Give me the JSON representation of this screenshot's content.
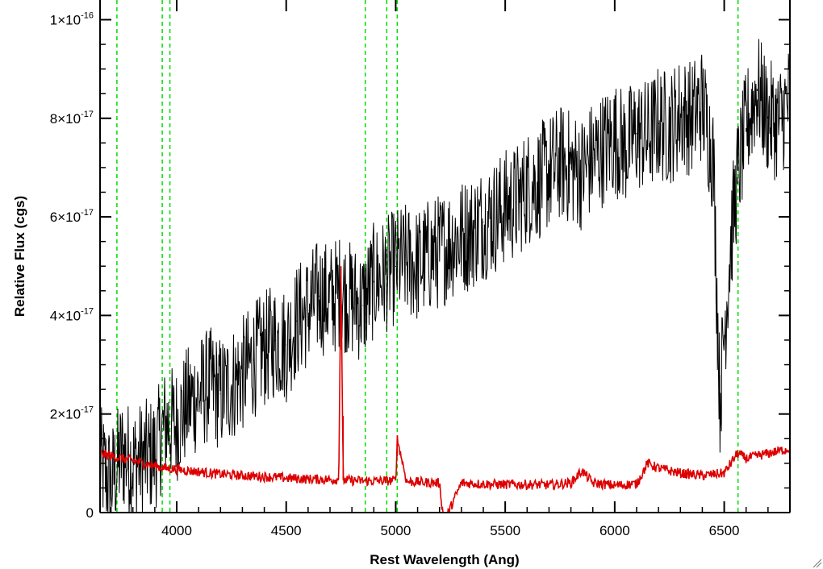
{
  "chart_data": {
    "type": "line",
    "title": "",
    "xlabel": "Rest Wavelength (Ang)",
    "ylabel": "Relative Flux (cgs)",
    "xlim": [
      3650,
      6800
    ],
    "ylim": [
      0,
      1.04e-16
    ],
    "x_ticks": [
      4000,
      4500,
      5000,
      5500,
      6000,
      6500
    ],
    "x_tick_labels": [
      "4000",
      "4500",
      "5000",
      "5500",
      "6000",
      "6500"
    ],
    "y_ticks": [
      {
        "value": 0,
        "mantissa": "0",
        "exponent": ""
      },
      {
        "value": 2e-17,
        "mantissa": "2×10",
        "exponent": "-17"
      },
      {
        "value": 4e-17,
        "mantissa": "4×10",
        "exponent": "-17"
      },
      {
        "value": 6e-17,
        "mantissa": "6×10",
        "exponent": "-17"
      },
      {
        "value": 8e-17,
        "mantissa": "8×10",
        "exponent": "-17"
      },
      {
        "value": 1e-16,
        "mantissa": "1×10",
        "exponent": "-16"
      }
    ],
    "grid": false,
    "reference_lines": {
      "color": "#00dd00",
      "style": "dashed",
      "x": [
        3727,
        3934,
        3969,
        4861,
        4959,
        5007,
        6563
      ]
    },
    "series": [
      {
        "color": "#000000",
        "x": [
          3650,
          3700,
          3750,
          3800,
          3850,
          3900,
          3950,
          4000,
          4050,
          4100,
          4150,
          4200,
          4250,
          4300,
          4350,
          4400,
          4450,
          4500,
          4550,
          4600,
          4650,
          4700,
          4750,
          4800,
          4850,
          4900,
          4950,
          5000,
          5050,
          5100,
          5150,
          5200,
          5250,
          5300,
          5350,
          5400,
          5450,
          5500,
          5550,
          5600,
          5650,
          5700,
          5750,
          5800,
          5850,
          5900,
          5950,
          6000,
          6050,
          6100,
          6150,
          6200,
          6250,
          6300,
          6350,
          6400,
          6450,
          6480,
          6500,
          6530,
          6560,
          6600,
          6650,
          6700,
          6750,
          6800
        ],
        "values": [
          1e-17,
          6e-18,
          1.2e-17,
          1e-17,
          1.1e-17,
          1.2e-17,
          1.8e-17,
          1.8e-17,
          2.2e-17,
          2.4e-17,
          2.6e-17,
          2.4e-17,
          2.6e-17,
          2.8e-17,
          3.1e-17,
          3.3e-17,
          3.5e-17,
          3.4e-17,
          3.9e-17,
          4.1e-17,
          4.4e-17,
          4.3e-17,
          4.5e-17,
          4.3e-17,
          4.2e-17,
          4.7e-17,
          4.8e-17,
          5e-17,
          5.1e-17,
          5e-17,
          5.2e-17,
          5.3e-17,
          5.5e-17,
          5.6e-17,
          5.7e-17,
          5.9e-17,
          6e-17,
          6.2e-17,
          6.3e-17,
          6.6e-17,
          6.7e-17,
          6.9e-17,
          7.1e-17,
          7e-17,
          6.9e-17,
          7.2e-17,
          7.4e-17,
          7.6e-17,
          7.4e-17,
          7.7e-17,
          7.6e-17,
          7.9e-17,
          7.8e-17,
          8.1e-17,
          8e-17,
          8.3e-17,
          7.2e-17,
          2.3e-17,
          3.6e-17,
          5.5e-17,
          6.8e-17,
          7.8e-17,
          8.6e-17,
          8e-17,
          7.9e-17,
          8.4e-17
        ],
        "noise_amplitude": 1.2e-17
      },
      {
        "color": "#dd0000",
        "x": [
          3650,
          3700,
          3750,
          3800,
          3850,
          3900,
          3950,
          4000,
          4050,
          4100,
          4150,
          4200,
          4300,
          4400,
          4500,
          4600,
          4700,
          4740,
          4750,
          4760,
          4800,
          4900,
          5000,
          5007,
          5050,
          5100,
          5200,
          5220,
          5300,
          5400,
          5500,
          5600,
          5700,
          5800,
          5850,
          5900,
          6000,
          6100,
          6150,
          6200,
          6300,
          6400,
          6500,
          6560,
          6600,
          6700,
          6800
        ],
        "values": [
          1.2e-17,
          1.15e-17,
          1.1e-17,
          1.05e-17,
          1e-17,
          9.5e-18,
          9e-18,
          8.8e-18,
          8.5e-18,
          8.3e-18,
          8e-18,
          7.8e-18,
          7.5e-18,
          7.3e-18,
          7e-18,
          6.8e-18,
          6.7e-18,
          6.7e-18,
          5e-17,
          6.6e-18,
          6.5e-18,
          6.4e-18,
          6.5e-18,
          1.5e-17,
          6.3e-18,
          6.2e-18,
          6e-18,
          -2e-18,
          6e-18,
          5.8e-18,
          5.7e-18,
          5.7e-18,
          5.6e-18,
          6e-18,
          8.5e-18,
          6e-18,
          5.5e-18,
          5.8e-18,
          1e-17,
          9e-18,
          8e-18,
          7.5e-18,
          8e-18,
          1.2e-17,
          1.1e-17,
          1.2e-17,
          1.3e-17
        ],
        "noise_amplitude": 1e-18
      }
    ]
  }
}
